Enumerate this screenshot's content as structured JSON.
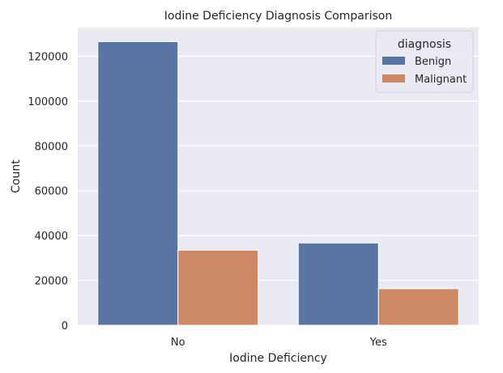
{
  "chart_data": {
    "type": "bar",
    "title": "Iodine Deficiency Diagnosis Comparison",
    "xlabel": "Iodine Deficiency",
    "ylabel": "Count",
    "categories": [
      "No",
      "Yes"
    ],
    "series": [
      {
        "name": "Benign",
        "values": [
          126500,
          36700
        ],
        "color": "#5975a4"
      },
      {
        "name": "Malignant",
        "values": [
          33500,
          16300
        ],
        "color": "#cc8963"
      }
    ],
    "ylim": [
      0,
      132800
    ],
    "yticks": [
      0,
      20000,
      40000,
      60000,
      80000,
      100000,
      120000
    ],
    "grid": true,
    "legend": {
      "title": "diagnosis",
      "placement": "top-right"
    },
    "colors": {
      "background": "#eaeaf2",
      "grid": "#ffffff"
    }
  }
}
